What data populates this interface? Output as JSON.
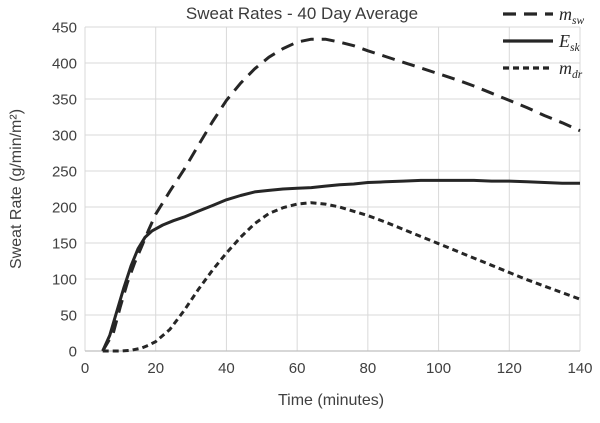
{
  "chart_data": {
    "type": "line",
    "title": "Sweat Rates - 40 Day Average",
    "xlabel": "Time (minutes)",
    "ylabel": "Sweat Rate (g/min/m²)",
    "xlim": [
      0,
      140
    ],
    "ylim": [
      0,
      450
    ],
    "x_ticks": [
      0,
      20,
      40,
      60,
      80,
      100,
      120,
      140
    ],
    "y_ticks": [
      0,
      50,
      100,
      150,
      200,
      250,
      300,
      350,
      400,
      450
    ],
    "grid": true,
    "legend_position": "top-right",
    "line_color": "#262626",
    "grid_color": "#d9d9d9",
    "axis_color": "#bfbfbf",
    "series": [
      {
        "name": "m_sw",
        "label_main": "m",
        "label_sub": "sw",
        "style": "long-dash",
        "x": [
          5,
          8,
          10,
          12,
          14,
          16,
          18,
          20,
          24,
          28,
          32,
          36,
          40,
          44,
          48,
          52,
          56,
          60,
          64,
          68,
          72,
          76,
          80,
          85,
          90,
          95,
          100,
          105,
          110,
          115,
          120,
          125,
          130,
          135,
          140
        ],
        "y": [
          0,
          25,
          62,
          95,
          122,
          145,
          168,
          190,
          222,
          252,
          285,
          318,
          348,
          372,
          392,
          408,
          420,
          429,
          433,
          433,
          429,
          424,
          417,
          409,
          401,
          393,
          385,
          377,
          368,
          358,
          348,
          338,
          327,
          317,
          306
        ]
      },
      {
        "name": "E_sk",
        "label_main": "E",
        "label_sub": "sk",
        "style": "solid",
        "x": [
          5,
          7,
          9,
          11,
          13,
          15,
          17,
          19,
          22,
          25,
          28,
          32,
          36,
          40,
          44,
          48,
          52,
          56,
          60,
          64,
          68,
          72,
          76,
          80,
          85,
          90,
          95,
          100,
          105,
          110,
          115,
          120,
          125,
          130,
          135,
          140
        ],
        "y": [
          0,
          22,
          55,
          88,
          118,
          142,
          158,
          167,
          175,
          181,
          186,
          194,
          202,
          210,
          216,
          221,
          223,
          225,
          226,
          227,
          229,
          231,
          232,
          234,
          235,
          236,
          237,
          237,
          237,
          237,
          236,
          236,
          235,
          234,
          233,
          233
        ]
      },
      {
        "name": "m_dr",
        "label_main": "m",
        "label_sub": "dr",
        "style": "short-dash",
        "x": [
          5,
          10,
          13,
          16,
          18,
          20,
          24,
          28,
          32,
          36,
          40,
          44,
          48,
          52,
          56,
          60,
          64,
          68,
          72,
          76,
          80,
          85,
          90,
          95,
          100,
          105,
          110,
          115,
          120,
          125,
          130,
          135,
          140
        ],
        "y": [
          0,
          0,
          1,
          4,
          8,
          13,
          30,
          56,
          85,
          112,
          136,
          158,
          177,
          191,
          199,
          204,
          206,
          204,
          200,
          194,
          188,
          179,
          169,
          159,
          149,
          139,
          129,
          119,
          109,
          99,
          90,
          81,
          72
        ]
      }
    ]
  }
}
